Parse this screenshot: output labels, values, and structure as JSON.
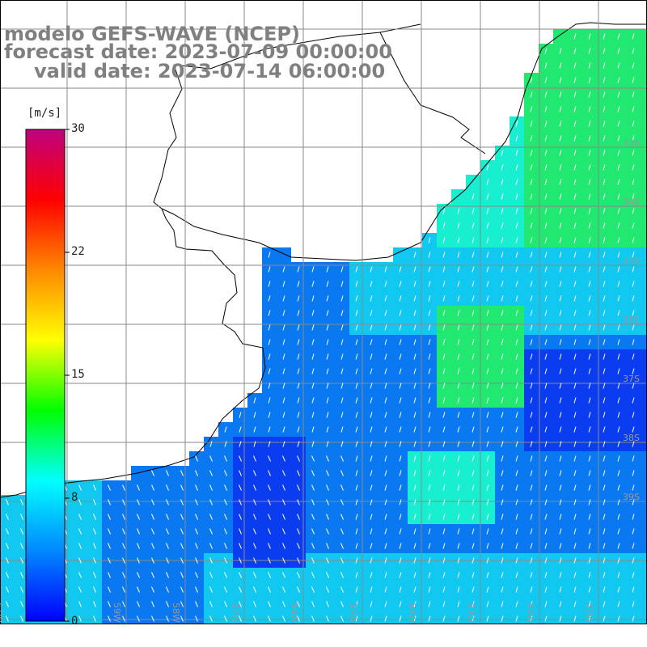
{
  "title": {
    "line1": "modelo GEFS-WAVE (NCEP)",
    "line2": "forecast date: 2023-07-09 00:00:00",
    "line3": "valid date: 2023-07-14 06:00:00"
  },
  "colorbar": {
    "unit": "[m/s]",
    "ticks": [
      "30",
      "22",
      "15",
      "8",
      "0"
    ],
    "tick_values": [
      30,
      22,
      15,
      8,
      0
    ],
    "min": 0,
    "max": 30,
    "colors": [
      "#0000ff",
      "#0088ff",
      "#00ffff",
      "#00ff00",
      "#ffff00",
      "#ff8800",
      "#ff0000",
      "#c00080"
    ]
  },
  "map": {
    "field": "wind speed with direction vectors",
    "ocean_colors": {
      "dark_blue": "#0a3cf0",
      "blue": "#0a78f0",
      "light_blue": "#10c8f0",
      "cyan": "#18eed0",
      "green": "#20e870"
    },
    "land_color": "#ffffff",
    "grid_color": "#808080",
    "lat_labels": [
      "33S",
      "34S",
      "35S",
      "36S",
      "37S",
      "38S",
      "39S"
    ],
    "lon_labels": [
      "61W",
      "60W",
      "59W",
      "58W",
      "57W",
      "56W",
      "55W",
      "54W",
      "53W",
      "52W",
      "51W"
    ]
  }
}
